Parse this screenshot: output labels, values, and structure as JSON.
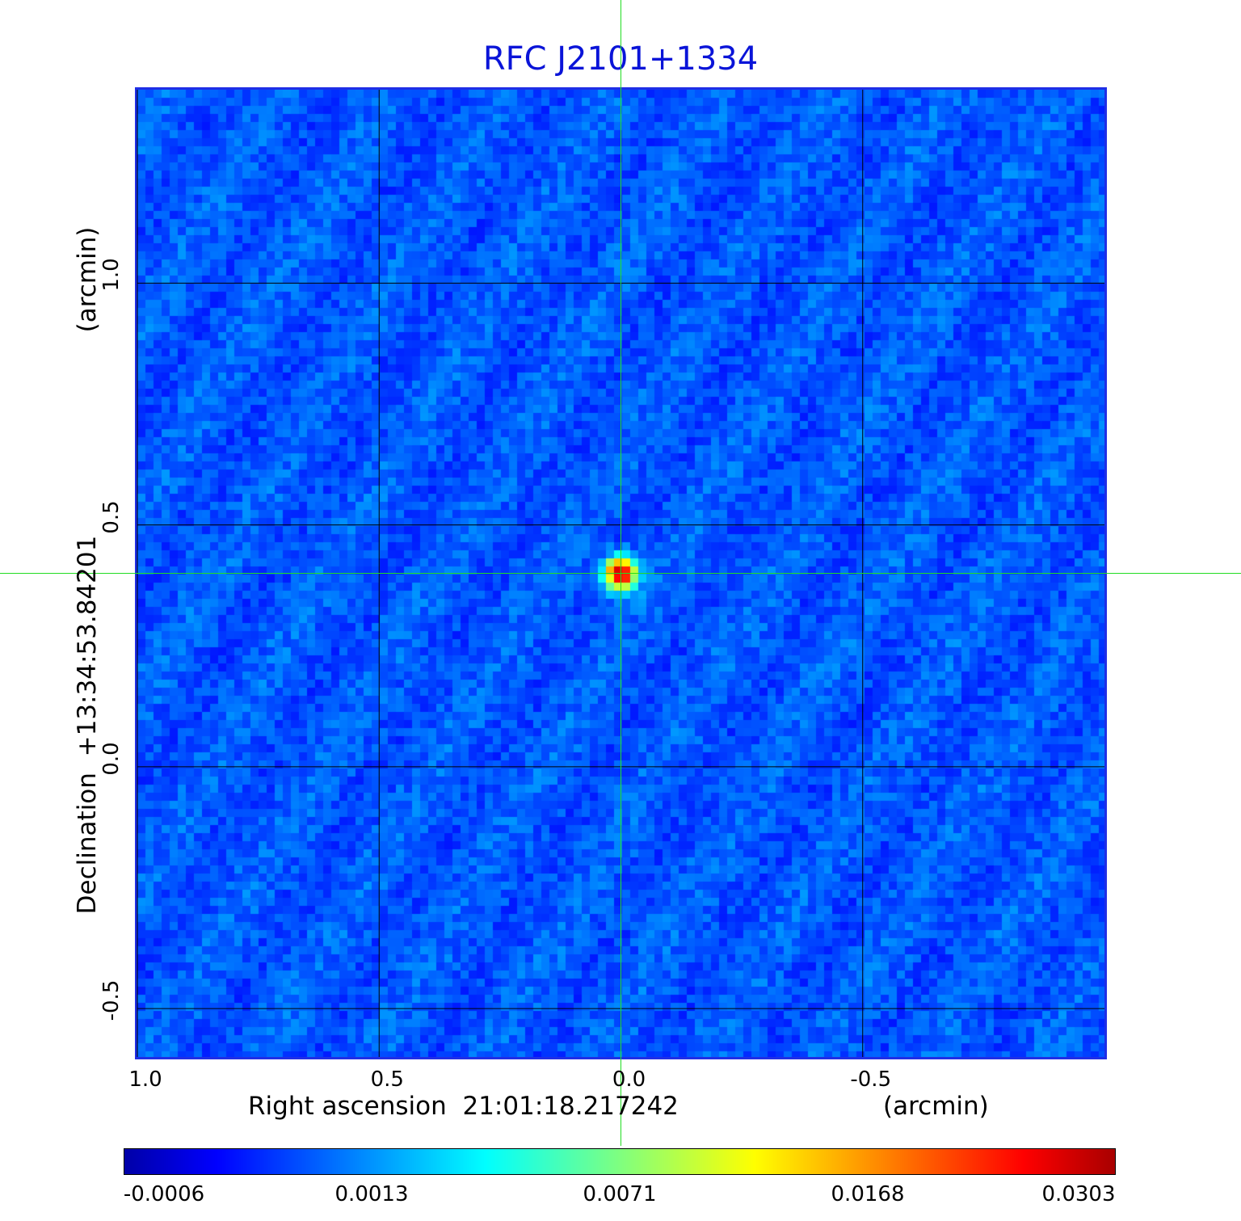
{
  "chart_data": {
    "type": "heatmap",
    "title": "RFC J2101+1334",
    "xlabel": "Right ascension  21:01:18.217242",
    "xlabel_unit": "(arcmin)",
    "ylabel": "Declination  +13:34:53.84201",
    "ylabel_unit": "(arcmin)",
    "xlim": [
      1.0,
      -1.0
    ],
    "ylim": [
      -0.6,
      1.4
    ],
    "x_ticks": [
      "1.0",
      "0.5",
      "0.0",
      "-0.5"
    ],
    "y_ticks": [
      "1.0",
      "0.5",
      "0.0",
      "-0.5"
    ],
    "x_tick_values": [
      1.0,
      0.5,
      0.0,
      -0.5
    ],
    "y_tick_values": [
      1.0,
      0.5,
      0.0,
      -0.5
    ],
    "grid": true,
    "crosshair": {
      "x": 0.0,
      "y": 0.4,
      "color": "#22dd22"
    },
    "source": {
      "x": 0.0,
      "y": 0.4,
      "peak": 0.0303
    },
    "colormap": "jet",
    "colorbar_ticks": [
      "-0.0006",
      "0.0013",
      "0.0071",
      "0.0168",
      "0.0303"
    ],
    "colors": {
      "title": "#0a14d8",
      "frame": "#1f2ee6",
      "background_noise": "#1a50f0"
    }
  }
}
